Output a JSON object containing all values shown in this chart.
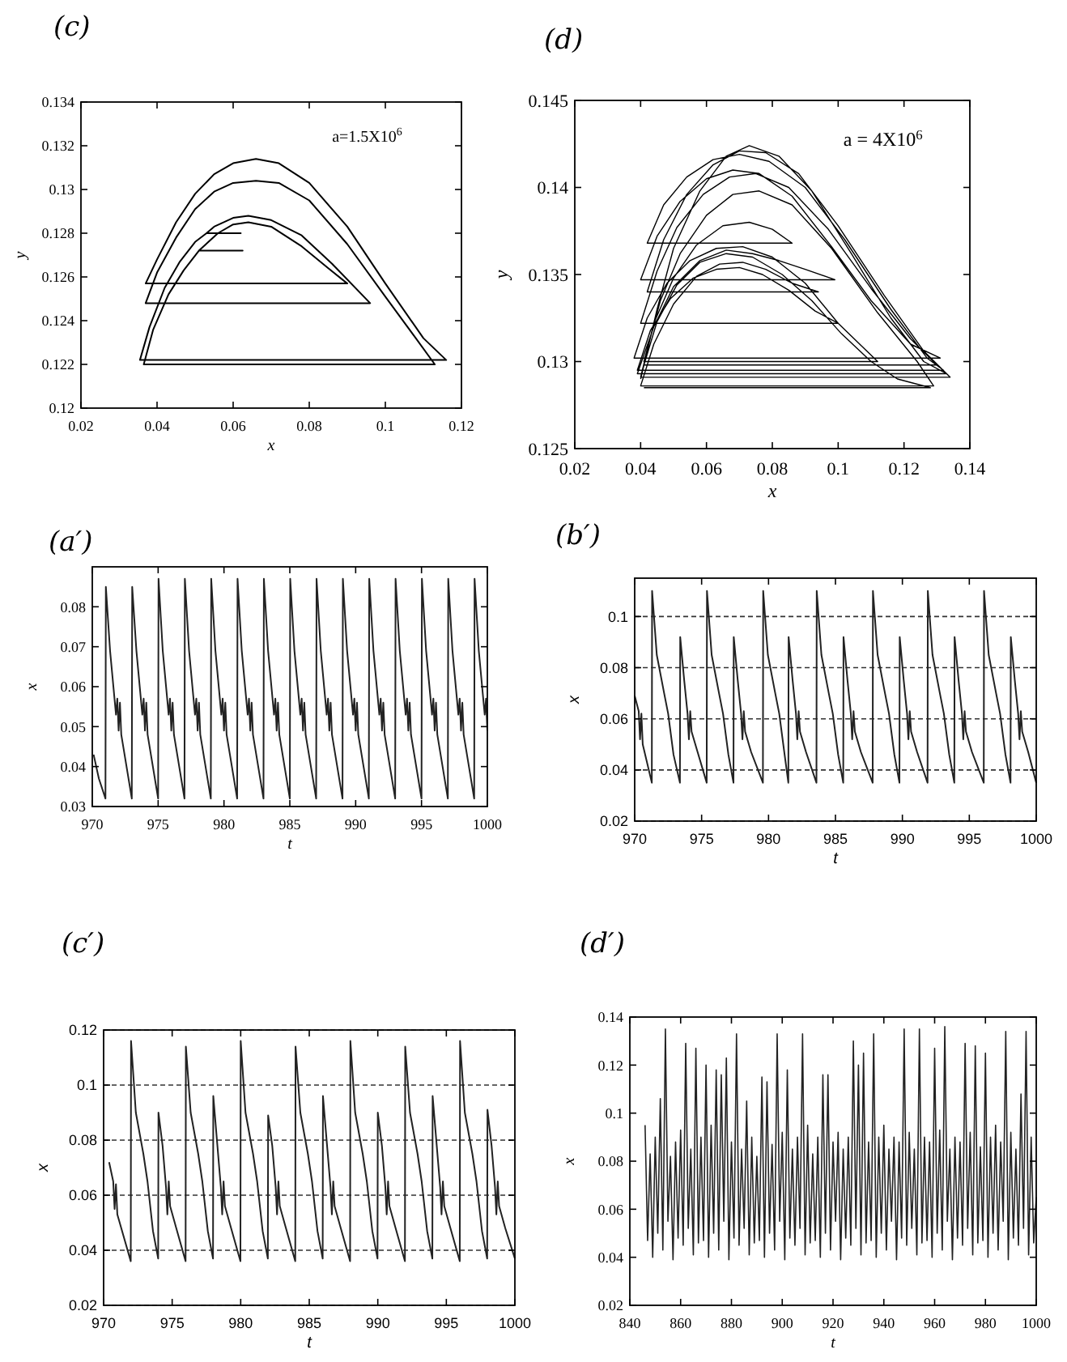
{
  "chart_data": [
    {
      "type": "line",
      "title": "(c)",
      "xlabel": "x",
      "ylabel": "y",
      "xlim": [
        0.02,
        0.12
      ],
      "ylim": [
        0.12,
        0.134
      ],
      "xticks": [
        0.02,
        0.04,
        0.06,
        0.08,
        0.1,
        0.12
      ],
      "yticks": [
        0.12,
        0.122,
        0.124,
        0.126,
        0.128,
        0.13,
        0.132,
        0.134
      ],
      "annotations": [
        "a=1.5X10$^{6}$"
      ],
      "series": [
        {
          "color": "#000000",
          "x": [
            0.06,
            0.066,
            0.072,
            0.08,
            0.09,
            0.1,
            0.11,
            0.116,
            0.0355,
            0.038,
            0.042,
            0.046,
            0.05,
            0.053,
            0.062,
            0.053,
            0.055,
            0.06,
            0.064,
            0.07,
            0.078,
            0.086,
            0.096,
            0.037,
            0.04,
            0.045,
            0.05,
            0.055,
            0.06,
            0.066,
            0.072,
            0.08,
            0.09,
            0.1,
            0.108,
            0.113,
            0.0365,
            0.039,
            0.043,
            0.047,
            0.051,
            0.0625,
            0.051,
            0.056,
            0.06,
            0.064,
            0.07,
            0.078,
            0.085,
            0.09,
            0.037,
            0.04,
            0.045,
            0.05,
            0.055,
            0.06,
            0.066,
            0.072
          ],
          "values": [
            0.1312,
            0.1314,
            0.1312,
            0.1303,
            0.1283,
            0.1257,
            0.1232,
            0.1222,
            0.1222,
            0.1237,
            0.1255,
            0.1267,
            0.1276,
            0.128,
            0.128,
            0.128,
            0.1283,
            0.1287,
            0.1288,
            0.1286,
            0.1279,
            0.1266,
            0.1248,
            0.1248,
            0.1262,
            0.1278,
            0.1291,
            0.1299,
            0.1303,
            0.1304,
            0.1303,
            0.1295,
            0.1275,
            0.1251,
            0.1232,
            0.122,
            0.122,
            0.1236,
            0.1252,
            0.1263,
            0.1272,
            0.1272,
            0.1272,
            0.128,
            0.1284,
            0.1285,
            0.1283,
            0.1274,
            0.1264,
            0.1257,
            0.1257,
            0.1268,
            0.1285,
            0.1298,
            0.1307,
            0.1312,
            0.1314,
            0.1312
          ]
        }
      ]
    },
    {
      "type": "line",
      "title": "(d)",
      "xlabel": "x",
      "ylabel": "y",
      "xlim": [
        0.02,
        0.14
      ],
      "ylim": [
        0.125,
        0.145
      ],
      "xticks": [
        0.02,
        0.04,
        0.06,
        0.08,
        0.1,
        0.12,
        0.14
      ],
      "yticks": [
        0.125,
        0.13,
        0.135,
        0.14,
        0.145
      ],
      "annotations": [
        "a = 4X10$^{6}$"
      ],
      "series": [
        {
          "color": "#000000",
          "x": [
            0.04,
            0.045,
            0.05,
            0.058,
            0.066,
            0.073,
            0.082,
            0.092,
            0.104,
            0.116,
            0.126,
            0.133,
            0.039,
            0.044,
            0.05,
            0.058,
            0.066,
            0.074,
            0.082,
            0.09,
            0.099,
            0.04,
            0.045,
            0.052,
            0.06,
            0.068,
            0.076,
            0.086,
            0.098,
            0.11,
            0.122,
            0.131,
            0.038,
            0.042,
            0.048,
            0.055,
            0.063,
            0.071,
            0.08,
            0.09,
            0.1,
            0.112,
            0.041,
            0.046,
            0.052,
            0.06,
            0.068,
            0.076,
            0.086,
            0.098,
            0.112,
            0.124,
            0.129,
            0.04,
            0.044,
            0.05,
            0.057,
            0.064,
            0.071,
            0.078,
            0.086,
            0.094,
            0.042,
            0.047,
            0.054,
            0.062,
            0.07,
            0.078,
            0.088,
            0.1,
            0.114,
            0.126,
            0.134,
            0.04,
            0.044,
            0.05,
            0.057,
            0.065,
            0.073,
            0.08,
            0.086,
            0.042,
            0.047,
            0.054,
            0.062,
            0.07,
            0.079,
            0.09,
            0.102,
            0.116,
            0.127,
            0.132,
            0.039,
            0.043,
            0.049,
            0.056,
            0.063,
            0.07,
            0.077,
            0.085,
            0.093,
            0.1,
            0.04,
            0.045,
            0.051,
            0.059,
            0.067,
            0.075,
            0.085,
            0.097,
            0.11,
            0.122,
            0.13,
            0.041,
            0.045,
            0.051,
            0.058,
            0.066,
            0.074,
            0.083,
            0.092,
            0.101,
            0.11,
            0.118,
            0.128,
            0.041
          ],
          "values": [
            0.129,
            0.133,
            0.1365,
            0.1398,
            0.1418,
            0.1424,
            0.1418,
            0.1398,
            0.1362,
            0.1325,
            0.13,
            0.1293,
            0.1293,
            0.132,
            0.1343,
            0.1358,
            0.1364,
            0.1362,
            0.1358,
            0.1353,
            0.1347,
            0.1347,
            0.1372,
            0.1392,
            0.1405,
            0.141,
            0.1408,
            0.1395,
            0.1366,
            0.1335,
            0.131,
            0.1302,
            0.1302,
            0.1325,
            0.1345,
            0.1358,
            0.1365,
            0.1366,
            0.136,
            0.1345,
            0.1322,
            0.13,
            0.13,
            0.1335,
            0.1362,
            0.1384,
            0.1396,
            0.1398,
            0.139,
            0.1365,
            0.1328,
            0.13,
            0.1286,
            0.1286,
            0.131,
            0.1333,
            0.1349,
            0.1356,
            0.1357,
            0.1353,
            0.1345,
            0.134,
            0.134,
            0.137,
            0.1396,
            0.1413,
            0.1421,
            0.142,
            0.1408,
            0.1378,
            0.1338,
            0.1306,
            0.1291,
            0.1291,
            0.1322,
            0.1348,
            0.1367,
            0.1378,
            0.138,
            0.1376,
            0.1368,
            0.1368,
            0.139,
            0.1406,
            0.1416,
            0.1419,
            0.1415,
            0.14,
            0.137,
            0.133,
            0.1302,
            0.1295,
            0.1295,
            0.1318,
            0.1336,
            0.1348,
            0.1353,
            0.1354,
            0.135,
            0.1341,
            0.1329,
            0.1322,
            0.1322,
            0.1352,
            0.1377,
            0.1396,
            0.1406,
            0.1408,
            0.14,
            0.1376,
            0.1342,
            0.1313,
            0.1298,
            0.1298,
            0.1323,
            0.1344,
            0.1357,
            0.1362,
            0.136,
            0.135,
            0.1335,
            0.1316,
            0.13,
            0.129,
            0.1285,
            0.1285
          ]
        }
      ]
    },
    {
      "type": "line",
      "title": "(a′)",
      "xlabel": "t",
      "ylabel": "x",
      "xlim": [
        970,
        1000
      ],
      "ylim": [
        0.03,
        0.09
      ],
      "xticks": [
        970,
        975,
        980,
        985,
        990,
        995,
        1000
      ],
      "yticks": [
        0.03,
        0.04,
        0.05,
        0.06,
        0.07,
        0.08
      ],
      "series": [
        {
          "color": "#222222",
          "x": [
            970.1,
            970.5,
            971,
            971.03,
            971.35,
            971.8,
            971.9,
            972,
            972.1,
            972.2,
            973,
            973.03,
            973.35,
            973.8,
            973.9,
            974,
            974.1,
            974.2,
            975,
            975.03,
            975.35,
            975.8,
            975.9,
            976,
            976.1,
            976.2,
            977,
            977.03,
            977.35,
            977.8,
            977.9,
            978,
            978.1,
            978.2,
            979,
            979.03,
            979.35,
            979.8,
            979.9,
            980,
            980.1,
            980.2,
            981,
            981.03,
            981.35,
            981.8,
            981.9,
            982,
            982.1,
            982.2,
            983,
            983.03,
            983.35,
            983.8,
            983.9,
            984,
            984.1,
            984.2,
            985,
            985.03,
            985.35,
            985.8,
            985.9,
            986,
            986.1,
            986.2,
            987,
            987.03,
            987.35,
            987.8,
            987.9,
            988,
            988.1,
            988.2,
            989,
            989.03,
            989.35,
            989.8,
            989.9,
            990,
            990.1,
            990.2,
            991,
            991.03,
            991.35,
            991.8,
            991.9,
            992,
            992.1,
            992.2,
            993,
            993.03,
            993.35,
            993.8,
            993.9,
            994,
            994.1,
            994.2,
            995,
            995.03,
            995.35,
            995.8,
            995.9,
            996,
            996.1,
            996.2,
            997,
            997.03,
            997.35,
            997.8,
            997.9,
            998,
            998.1,
            998.2,
            999,
            999.03,
            999.35,
            999.8,
            999.9,
            1000
          ],
          "values": [
            0.043,
            0.037,
            0.032,
            0.085,
            0.069,
            0.053,
            0.057,
            0.049,
            0.056,
            0.048,
            0.032,
            0.085,
            0.069,
            0.053,
            0.057,
            0.049,
            0.056,
            0.048,
            0.032,
            0.087,
            0.069,
            0.053,
            0.057,
            0.049,
            0.056,
            0.048,
            0.032,
            0.087,
            0.069,
            0.053,
            0.057,
            0.049,
            0.056,
            0.048,
            0.032,
            0.087,
            0.069,
            0.053,
            0.057,
            0.049,
            0.056,
            0.048,
            0.032,
            0.087,
            0.069,
            0.053,
            0.057,
            0.049,
            0.056,
            0.048,
            0.032,
            0.087,
            0.069,
            0.053,
            0.057,
            0.049,
            0.056,
            0.048,
            0.032,
            0.087,
            0.069,
            0.053,
            0.057,
            0.049,
            0.056,
            0.048,
            0.032,
            0.087,
            0.069,
            0.053,
            0.057,
            0.049,
            0.056,
            0.048,
            0.032,
            0.087,
            0.069,
            0.053,
            0.057,
            0.049,
            0.056,
            0.048,
            0.032,
            0.087,
            0.069,
            0.053,
            0.057,
            0.049,
            0.056,
            0.048,
            0.032,
            0.087,
            0.069,
            0.053,
            0.057,
            0.049,
            0.056,
            0.048,
            0.032,
            0.087,
            0.069,
            0.053,
            0.057,
            0.049,
            0.056,
            0.048,
            0.032,
            0.087,
            0.069,
            0.053,
            0.057,
            0.049,
            0.056,
            0.048,
            0.032,
            0.087,
            0.069,
            0.053,
            0.057,
            0.049
          ]
        }
      ]
    },
    {
      "type": "line",
      "title": "(b′)",
      "xlabel": "t",
      "ylabel": "x",
      "xlim": [
        970,
        1000
      ],
      "ylim": [
        0.02,
        0.115
      ],
      "xticks": [
        970,
        975,
        980,
        985,
        990,
        995,
        1000
      ],
      "yticks": [
        0.02,
        0.04,
        0.06,
        0.08,
        0.1
      ],
      "grid": "y",
      "series": [
        {
          "color": "#222222",
          "x": [
            970,
            970.3,
            970.4,
            970.5,
            970.6,
            971.28,
            971.3,
            971.65,
            972.2,
            972.5,
            972.9,
            973.38,
            973.4,
            973.7,
            973.95,
            974.05,
            974.15,
            974.25,
            974.7,
            975.38,
            975.4,
            975.75,
            976.3,
            976.6,
            977,
            977.38,
            977.4,
            977.7,
            977.95,
            978.05,
            978.15,
            978.25,
            978.7,
            979.58,
            979.6,
            979.95,
            980.5,
            980.8,
            981.2,
            981.48,
            981.5,
            981.8,
            982.05,
            982.15,
            982.25,
            982.35,
            982.8,
            983.58,
            983.6,
            983.95,
            984.5,
            984.8,
            985.2,
            985.58,
            985.6,
            985.9,
            986.15,
            986.25,
            986.35,
            986.45,
            986.9,
            987.78,
            987.8,
            988.15,
            988.7,
            989,
            989.4,
            989.78,
            989.8,
            990.1,
            990.35,
            990.45,
            990.55,
            990.65,
            991.1,
            991.88,
            991.9,
            992.25,
            992.8,
            993.1,
            993.5,
            993.88,
            993.9,
            994.2,
            994.45,
            994.55,
            994.65,
            994.75,
            995.2,
            996.08,
            996.1,
            996.45,
            997,
            997.3,
            997.7,
            998.08,
            998.1,
            998.4,
            998.65,
            998.75,
            998.85,
            998.95,
            999.4,
            1000
          ],
          "values": [
            0.069,
            0.063,
            0.052,
            0.062,
            0.05,
            0.035,
            0.11,
            0.085,
            0.07,
            0.062,
            0.046,
            0.035,
            0.092,
            0.075,
            0.062,
            0.052,
            0.063,
            0.055,
            0.047,
            0.035,
            0.11,
            0.085,
            0.07,
            0.062,
            0.046,
            0.035,
            0.092,
            0.075,
            0.062,
            0.052,
            0.063,
            0.055,
            0.047,
            0.035,
            0.11,
            0.085,
            0.07,
            0.062,
            0.046,
            0.035,
            0.092,
            0.075,
            0.062,
            0.052,
            0.063,
            0.055,
            0.047,
            0.035,
            0.11,
            0.085,
            0.07,
            0.062,
            0.046,
            0.035,
            0.092,
            0.075,
            0.062,
            0.052,
            0.063,
            0.055,
            0.047,
            0.035,
            0.11,
            0.085,
            0.07,
            0.062,
            0.046,
            0.035,
            0.092,
            0.075,
            0.062,
            0.052,
            0.063,
            0.055,
            0.047,
            0.035,
            0.11,
            0.085,
            0.07,
            0.062,
            0.046,
            0.035,
            0.092,
            0.075,
            0.062,
            0.052,
            0.063,
            0.055,
            0.047,
            0.035,
            0.11,
            0.085,
            0.07,
            0.062,
            0.046,
            0.035,
            0.092,
            0.075,
            0.062,
            0.052,
            0.063,
            0.055,
            0.047,
            0.035
          ]
        }
      ]
    },
    {
      "type": "line",
      "title": "(c′)",
      "xlabel": "t",
      "ylabel": "x",
      "xlim": [
        970,
        1000
      ],
      "ylim": [
        0.02,
        0.12
      ],
      "xticks": [
        970,
        975,
        980,
        985,
        990,
        995,
        1000
      ],
      "yticks": [
        0.02,
        0.04,
        0.06,
        0.08,
        0.1,
        0.12
      ],
      "grid": "y",
      "series": [
        {
          "color": "#222222",
          "x": [
            970.4,
            970.7,
            970.8,
            970.9,
            971,
            971.98,
            972,
            972.35,
            972.9,
            973.2,
            973.6,
            973.98,
            974,
            974.3,
            974.55,
            974.65,
            974.75,
            974.85,
            975.3,
            975.98,
            976,
            976.35,
            976.9,
            977.2,
            977.6,
            977.98,
            978,
            978.3,
            978.55,
            978.65,
            978.75,
            978.85,
            979.3,
            979.98,
            980,
            980.35,
            980.9,
            981.2,
            981.6,
            981.98,
            982,
            982.3,
            982.55,
            982.65,
            982.75,
            982.85,
            983.3,
            983.98,
            984,
            984.35,
            984.9,
            985.2,
            985.6,
            985.98,
            986,
            986.3,
            986.55,
            986.65,
            986.75,
            986.85,
            987.3,
            987.98,
            988,
            988.35,
            988.9,
            989.2,
            989.6,
            989.98,
            990,
            990.3,
            990.55,
            990.65,
            990.75,
            990.85,
            991.3,
            991.98,
            992,
            992.35,
            992.9,
            993.2,
            993.6,
            993.98,
            994,
            994.3,
            994.55,
            994.65,
            994.75,
            994.85,
            995.3,
            995.98,
            996,
            996.35,
            996.9,
            997.2,
            997.6,
            997.98,
            998,
            998.3,
            998.55,
            998.65,
            998.75,
            998.85,
            999.3,
            1000
          ],
          "values": [
            0.072,
            0.065,
            0.055,
            0.064,
            0.053,
            0.036,
            0.116,
            0.09,
            0.075,
            0.065,
            0.047,
            0.037,
            0.09,
            0.078,
            0.063,
            0.053,
            0.065,
            0.056,
            0.048,
            0.036,
            0.114,
            0.09,
            0.075,
            0.065,
            0.047,
            0.037,
            0.096,
            0.078,
            0.063,
            0.053,
            0.065,
            0.056,
            0.048,
            0.036,
            0.116,
            0.09,
            0.075,
            0.065,
            0.047,
            0.037,
            0.089,
            0.078,
            0.063,
            0.053,
            0.065,
            0.056,
            0.048,
            0.036,
            0.114,
            0.09,
            0.075,
            0.065,
            0.047,
            0.037,
            0.096,
            0.078,
            0.063,
            0.053,
            0.065,
            0.056,
            0.048,
            0.036,
            0.116,
            0.09,
            0.075,
            0.065,
            0.047,
            0.037,
            0.09,
            0.078,
            0.063,
            0.053,
            0.065,
            0.056,
            0.048,
            0.036,
            0.114,
            0.09,
            0.075,
            0.065,
            0.047,
            0.037,
            0.096,
            0.078,
            0.063,
            0.053,
            0.065,
            0.056,
            0.048,
            0.036,
            0.116,
            0.09,
            0.075,
            0.065,
            0.047,
            0.037,
            0.091,
            0.078,
            0.063,
            0.053,
            0.065,
            0.056,
            0.048,
            0.037
          ]
        }
      ]
    },
    {
      "type": "line",
      "title": "(d′)",
      "xlabel": "t",
      "ylabel": "x",
      "xlim": [
        840,
        1000
      ],
      "ylim": [
        0.02,
        0.14
      ],
      "xticks": [
        840,
        860,
        880,
        900,
        920,
        940,
        960,
        980,
        1000
      ],
      "yticks": [
        0.02,
        0.04,
        0.06,
        0.08,
        0.1,
        0.12,
        0.14
      ],
      "series": [
        {
          "color": "#222222",
          "x": [
            846,
            847,
            848,
            849,
            850,
            851,
            852,
            853,
            854,
            855,
            856,
            857,
            858,
            859,
            860,
            861,
            862,
            863,
            864,
            865,
            866,
            867,
            868,
            869,
            870,
            871,
            872,
            873,
            874,
            875,
            876,
            877,
            878,
            879,
            880,
            881,
            882,
            883,
            884,
            885,
            886,
            887,
            888,
            889,
            890,
            891,
            892,
            893,
            894,
            895,
            896,
            897,
            898,
            899,
            900,
            901,
            902,
            903,
            904,
            905,
            906,
            907,
            908,
            909,
            910,
            911,
            912,
            913,
            914,
            915,
            916,
            917,
            918,
            919,
            920,
            921,
            922,
            923,
            924,
            925,
            926,
            927,
            928,
            929,
            930,
            931,
            932,
            933,
            934,
            935,
            936,
            937,
            938,
            939,
            940,
            941,
            942,
            943,
            944,
            945,
            946,
            947,
            948,
            949,
            950,
            951,
            952,
            953,
            954,
            955,
            956,
            957,
            958,
            959,
            960,
            961,
            962,
            963,
            964,
            965,
            966,
            967,
            968,
            969,
            970,
            971,
            972,
            973,
            974,
            975,
            976,
            977,
            978,
            979,
            980,
            981,
            982,
            983,
            984,
            985,
            986,
            987,
            988,
            989,
            990,
            991,
            992,
            993,
            994,
            995,
            996,
            997,
            998,
            999,
            1000
          ],
          "values": [
            0.095,
            0.047,
            0.083,
            0.04,
            0.09,
            0.05,
            0.106,
            0.043,
            0.135,
            0.055,
            0.082,
            0.039,
            0.088,
            0.048,
            0.093,
            0.045,
            0.129,
            0.052,
            0.085,
            0.041,
            0.127,
            0.046,
            0.09,
            0.047,
            0.12,
            0.04,
            0.095,
            0.05,
            0.118,
            0.043,
            0.116,
            0.055,
            0.123,
            0.039,
            0.088,
            0.048,
            0.133,
            0.045,
            0.085,
            0.052,
            0.105,
            0.041,
            0.09,
            0.046,
            0.082,
            0.047,
            0.115,
            0.04,
            0.113,
            0.05,
            0.087,
            0.043,
            0.133,
            0.055,
            0.092,
            0.039,
            0.118,
            0.048,
            0.085,
            0.045,
            0.09,
            0.052,
            0.133,
            0.041,
            0.095,
            0.046,
            0.083,
            0.047,
            0.09,
            0.04,
            0.116,
            0.05,
            0.116,
            0.043,
            0.088,
            0.055,
            0.092,
            0.039,
            0.085,
            0.048,
            0.09,
            0.045,
            0.13,
            0.052,
            0.12,
            0.041,
            0.125,
            0.046,
            0.088,
            0.047,
            0.133,
            0.04,
            0.09,
            0.05,
            0.095,
            0.043,
            0.085,
            0.055,
            0.09,
            0.039,
            0.088,
            0.048,
            0.135,
            0.045,
            0.092,
            0.052,
            0.085,
            0.041,
            0.135,
            0.046,
            0.09,
            0.047,
            0.088,
            0.04,
            0.127,
            0.05,
            0.093,
            0.043,
            0.136,
            0.055,
            0.085,
            0.039,
            0.09,
            0.048,
            0.088,
            0.045,
            0.129,
            0.052,
            0.092,
            0.041,
            0.128,
            0.046,
            0.086,
            0.047,
            0.125,
            0.04,
            0.09,
            0.05,
            0.095,
            0.043,
            0.088,
            0.055,
            0.134,
            0.039,
            0.092,
            0.048,
            0.085,
            0.045,
            0.108,
            0.052,
            0.134,
            0.041,
            0.09,
            0.046,
            0.065
          ]
        }
      ]
    }
  ]
}
